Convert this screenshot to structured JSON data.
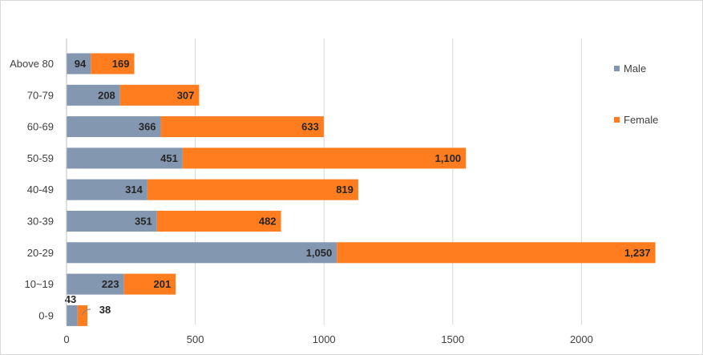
{
  "chart_data": {
    "type": "bar",
    "orientation": "horizontal",
    "stacked": true,
    "categories": [
      "0-9",
      "10~19",
      "20-29",
      "30-39",
      "40-49",
      "50-59",
      "60-69",
      "70-79",
      "Above 80"
    ],
    "series": [
      {
        "name": "Male",
        "color": "#8497b0",
        "values": [
          43,
          223,
          1050,
          351,
          314,
          451,
          366,
          208,
          94
        ],
        "labels": [
          "43",
          "223",
          "1,050",
          "351",
          "314",
          "451",
          "366",
          "208",
          "94"
        ]
      },
      {
        "name": "Female",
        "color": "#ff7c1f",
        "values": [
          38,
          201,
          1237,
          482,
          819,
          1100,
          633,
          307,
          169
        ],
        "labels": [
          "38",
          "201",
          "1,237",
          "482",
          "819",
          "1,100",
          "633",
          "307",
          "169"
        ]
      }
    ],
    "xlim": [
      0,
      2400
    ],
    "xticks": [
      0,
      500,
      1000,
      1500,
      2000
    ],
    "xtick_labels": [
      "0",
      "500",
      "1000",
      "1500",
      "2000"
    ],
    "grid": "vertical",
    "legend_position": "right",
    "title": "",
    "xlabel": "",
    "ylabel": ""
  }
}
